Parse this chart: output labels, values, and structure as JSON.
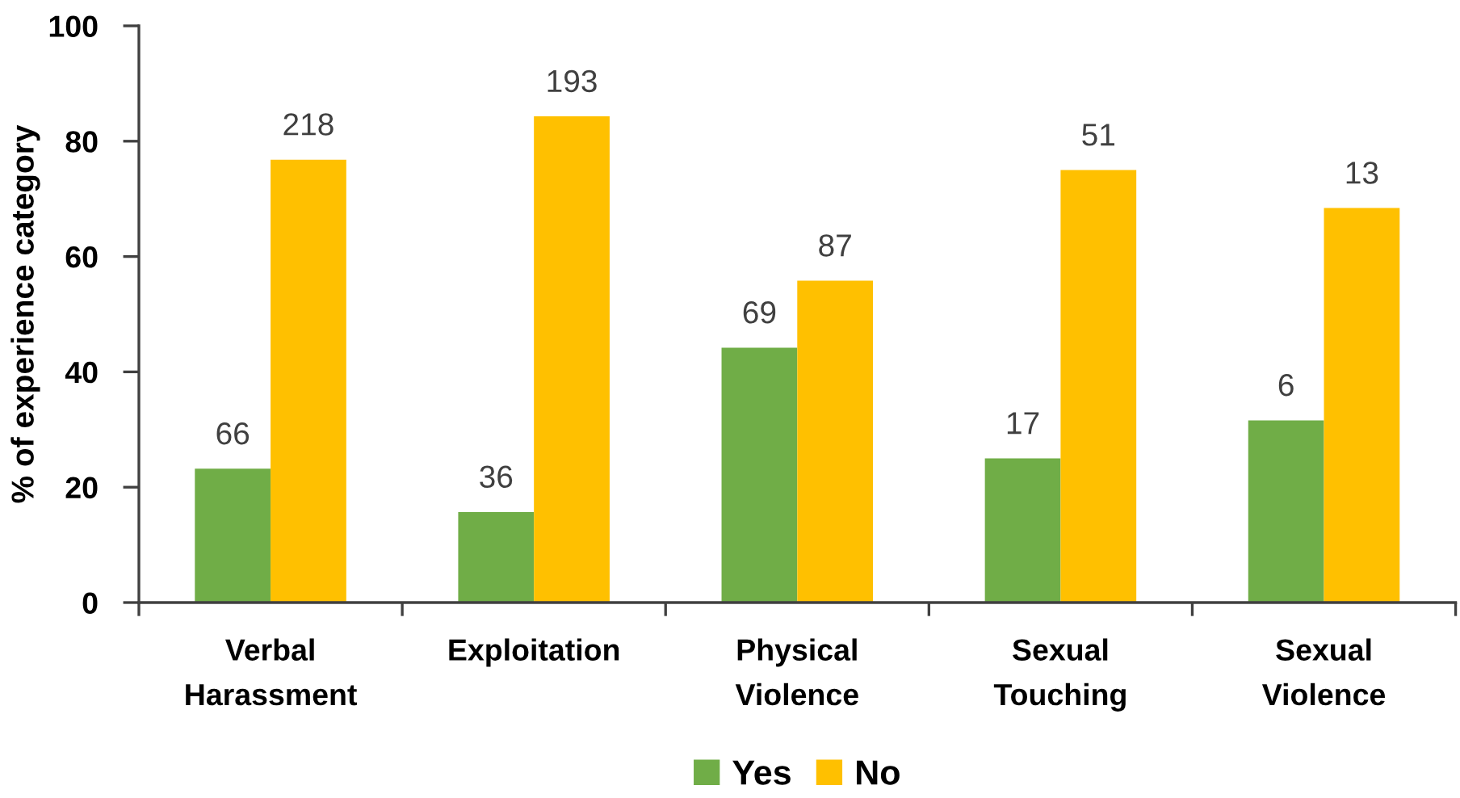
{
  "chart_data": {
    "type": "bar",
    "ylabel": "% of experience category",
    "categories": [
      "Verbal\nHarassment",
      "Exploitation",
      "Physical\nViolence",
      "Sexual\nTouching",
      "Sexual\nViolence"
    ],
    "series": [
      {
        "name": "Yes",
        "color": "#70ad47",
        "values": [
          23.2,
          15.7,
          44.2,
          25.0,
          31.6
        ]
      },
      {
        "name": "No",
        "color": "#ffc000",
        "values": [
          76.8,
          84.3,
          55.8,
          75.0,
          68.4
        ]
      }
    ],
    "annotations": [
      {
        "text": "66",
        "x": "Verbal\nHarassment",
        "y": 23.2
      },
      {
        "text": "36",
        "x": "Exploitation",
        "y": 15.7
      },
      {
        "text": "69",
        "x": "Physical\nViolence",
        "y": 44.2
      },
      {
        "text": "17",
        "x": "Sexual\nTouching",
        "y": 25.0
      },
      {
        "text": "6",
        "x": "Sexual\nViolence",
        "y": 31.6
      },
      {
        "text": "218",
        "x": "Verbal\nHarassment",
        "y": 76.8
      },
      {
        "text": "193",
        "x": "Exploitation",
        "y": 84.3
      },
      {
        "text": "87",
        "x": "Physical\nViolence",
        "y": 55.8
      },
      {
        "text": "51",
        "x": "Sexual\nTouching",
        "y": 75.0
      },
      {
        "text": "13",
        "x": "Sexual\nViolence",
        "y": 68.4
      }
    ],
    "ylim": [
      0,
      100
    ],
    "yticks": [
      0,
      20,
      40,
      60,
      80,
      100
    ],
    "grid": false,
    "legend": "bottom"
  }
}
